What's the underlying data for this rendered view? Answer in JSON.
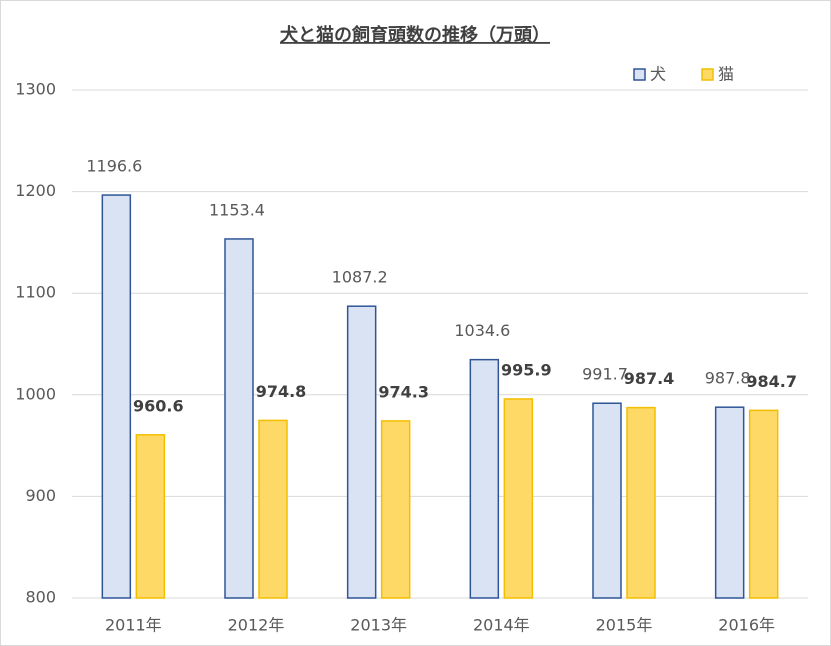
{
  "chart_data": {
    "type": "bar",
    "title": "犬と猫の飼育頭数の推移（万頭）",
    "categories": [
      "2011年",
      "2012年",
      "2013年",
      "2014年",
      "2015年",
      "2016年"
    ],
    "series": [
      {
        "name": "犬",
        "color": "#dae3f3",
        "edge": "#2f5597",
        "values": [
          1196.6,
          1153.4,
          1087.2,
          1034.6,
          991.7,
          987.8
        ]
      },
      {
        "name": "猫",
        "color": "#ffd966",
        "edge": "#f2bf00",
        "values": [
          960.6,
          974.8,
          974.3,
          995.9,
          987.4,
          984.7
        ]
      }
    ],
    "ylim": [
      800,
      1300
    ],
    "yticks": [
      800,
      900,
      1000,
      1100,
      1200,
      1300
    ],
    "grid": true,
    "legend": "top-right"
  }
}
